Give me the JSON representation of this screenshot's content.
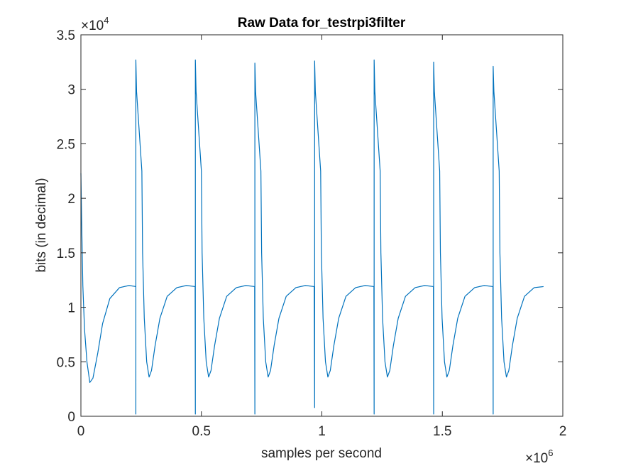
{
  "chart_data": {
    "type": "line",
    "title": "Raw Data for_testrpi3filter",
    "xlabel": "samples per second",
    "ylabel": "bits (in decimal)",
    "xlim": [
      0,
      2000000
    ],
    "ylim": [
      0,
      35000
    ],
    "x_ticks": [
      0,
      500000,
      1000000,
      1500000,
      2000000
    ],
    "x_tick_labels": [
      "0",
      "0.5",
      "1",
      "1.5",
      "2"
    ],
    "x_exponent_label": "×10^6",
    "x_exponent_base": "×10",
    "x_exponent_power": "6",
    "y_ticks": [
      0,
      5000,
      10000,
      15000,
      20000,
      25000,
      30000,
      35000
    ],
    "y_tick_labels": [
      "0",
      "0.5",
      "1",
      "1.5",
      "2",
      "2.5",
      "3",
      "3.5"
    ],
    "y_exponent_label": "×10^4",
    "y_exponent_base": "×10",
    "y_exponent_power": "4",
    "grid": false,
    "legend": "none",
    "series": [
      {
        "color": "#0072BD",
        "description": "periodic waveform: sharp spike to ~32500 then decay, dip to ~3500, recovery to ~12000 plateau",
        "period": 247000,
        "cycle_shape": [
          {
            "phase": 0,
            "value": 200
          },
          {
            "phase": 1,
            "value": 32600
          },
          {
            "phase": 3000,
            "value": 29800
          },
          {
            "phase": 25000,
            "value": 22500
          },
          {
            "phase": 28000,
            "value": 15000
          },
          {
            "phase": 35000,
            "value": 9000
          },
          {
            "phase": 45000,
            "value": 5000
          },
          {
            "phase": 55000,
            "value": 3600
          },
          {
            "phase": 65000,
            "value": 4200
          },
          {
            "phase": 80000,
            "value": 6500
          },
          {
            "phase": 100000,
            "value": 9000
          },
          {
            "phase": 130000,
            "value": 11000
          },
          {
            "phase": 170000,
            "value": 11800
          },
          {
            "phase": 210000,
            "value": 12000
          },
          {
            "phase": 246000,
            "value": 11900
          }
        ],
        "start_segment": [
          {
            "x": 0,
            "y": 22300
          },
          {
            "x": 3000,
            "y": 18000
          },
          {
            "x": 8000,
            "y": 12000
          },
          {
            "x": 15000,
            "y": 8000
          },
          {
            "x": 25000,
            "y": 5000
          },
          {
            "x": 37000,
            "y": 3100
          },
          {
            "x": 50000,
            "y": 3500
          },
          {
            "x": 70000,
            "y": 5800
          },
          {
            "x": 90000,
            "y": 8500
          },
          {
            "x": 120000,
            "y": 10800
          },
          {
            "x": 160000,
            "y": 11800
          },
          {
            "x": 200000,
            "y": 12000
          },
          {
            "x": 228000,
            "y": 11900
          }
        ],
        "spike_positions": [
          228000,
          475000,
          722000,
          970000,
          1217000,
          1464000,
          1711000
        ],
        "spike_peaks": [
          32700,
          32700,
          32400,
          32600,
          32700,
          32500,
          32100
        ],
        "spike_floors": [
          200,
          200,
          200,
          800,
          200,
          200,
          200
        ],
        "end_x": 1920000,
        "end_y": 11900
      }
    ]
  }
}
